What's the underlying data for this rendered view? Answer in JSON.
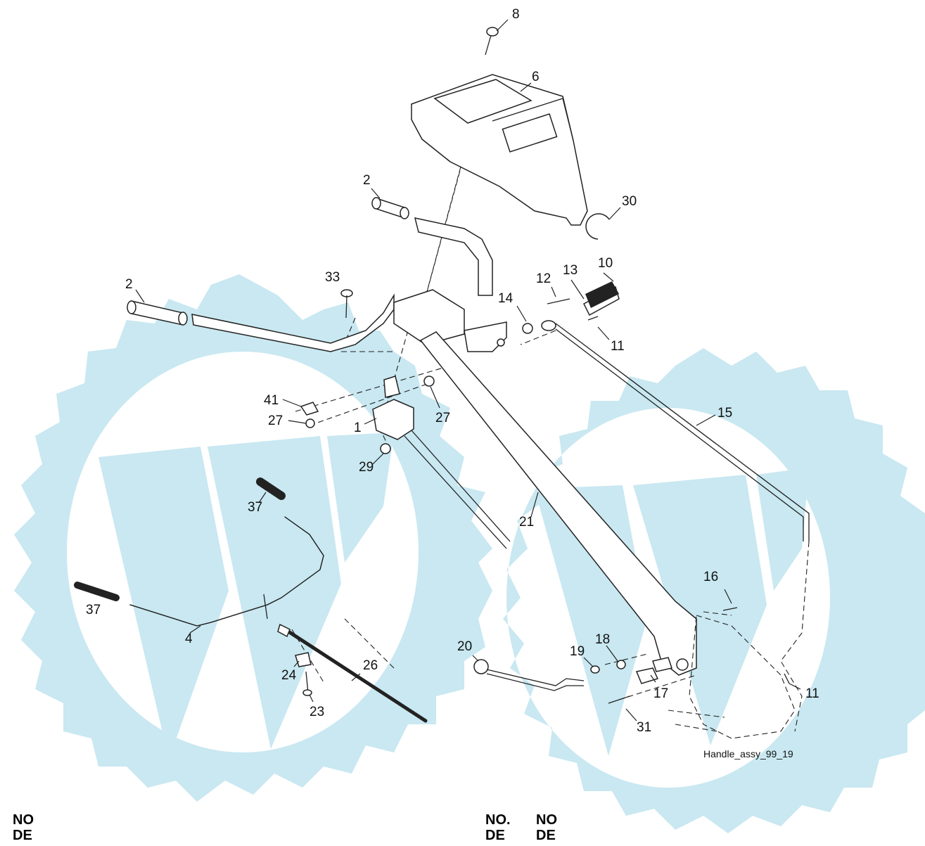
{
  "diagram": {
    "reference_label": "Handle_assy_99_19",
    "callouts": [
      "8",
      "6",
      "2",
      "30",
      "2",
      "33",
      "12",
      "13",
      "10",
      "14",
      "11",
      "41",
      "27",
      "1",
      "27",
      "29",
      "15",
      "37",
      "21",
      "37",
      "4",
      "16",
      "20",
      "19",
      "18",
      "26",
      "24",
      "17",
      "11",
      "23",
      "31"
    ]
  },
  "table_headers": {
    "left": {
      "line1": "NO",
      "line2": "DE"
    },
    "right_a": {
      "line1": "NO.",
      "line2": "DE"
    },
    "right_b": {
      "line1": "NO",
      "line2": "DE"
    }
  },
  "colors": {
    "watermark": "#c9e8f1",
    "line": "#222222",
    "background": "#ffffff"
  }
}
